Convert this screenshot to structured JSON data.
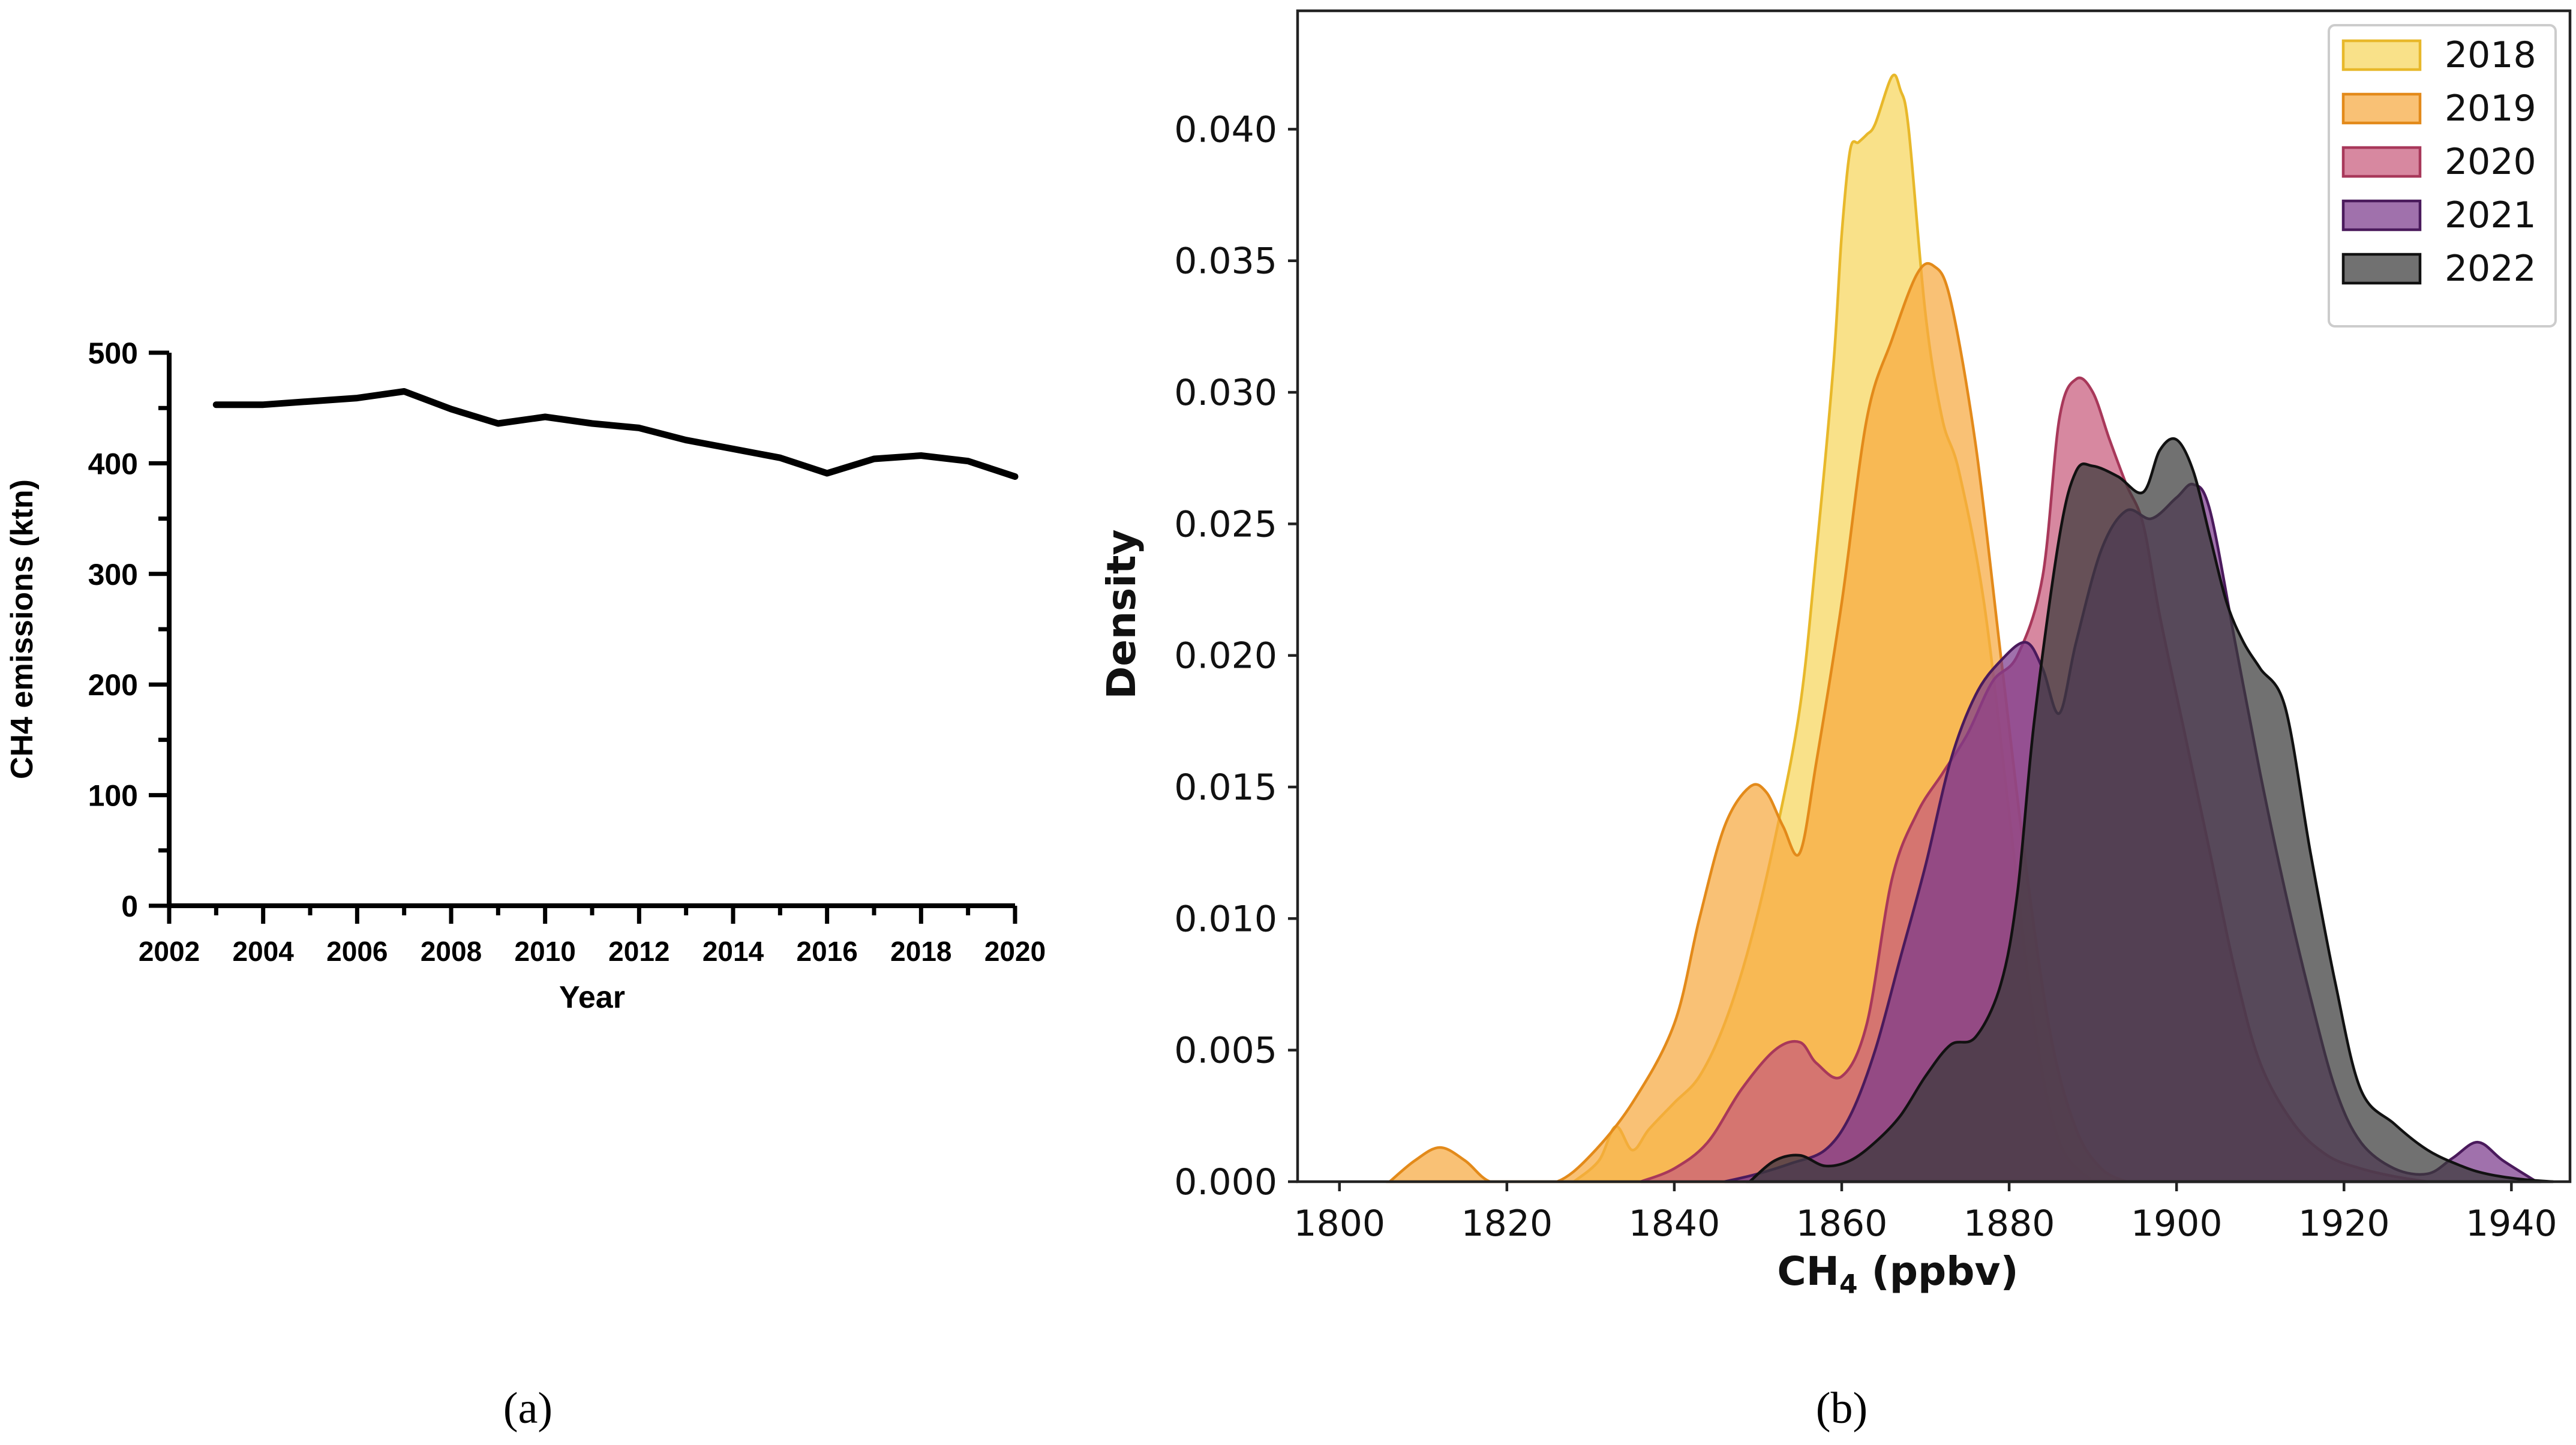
{
  "chart_data": [
    {
      "panel": "a",
      "type": "line",
      "ylabel": "CH4 emissions (ktn)",
      "xlabel": "Year",
      "xlim": [
        2002,
        2020
      ],
      "ylim": [
        0,
        500
      ],
      "x_ticks": [
        "2002",
        "2004",
        "2006",
        "2008",
        "2010",
        "2012",
        "2014",
        "2016",
        "2018",
        "2020"
      ],
      "y_ticks": [
        "0",
        "100",
        "200",
        "300",
        "400",
        "500"
      ],
      "series": [
        {
          "name": "CH4 emissions",
          "x": [
            2003,
            2004,
            2005,
            2006,
            2007,
            2008,
            2009,
            2010,
            2011,
            2012,
            2013,
            2014,
            2015,
            2016,
            2017,
            2018,
            2019,
            2020
          ],
          "values": [
            453,
            453,
            456,
            459,
            465,
            449,
            436,
            442,
            436,
            432,
            421,
            413,
            405,
            391,
            404,
            407,
            402,
            388
          ],
          "color": "#000000"
        }
      ]
    },
    {
      "panel": "b",
      "type": "area",
      "xlabel": "CH",
      "xlabel_sub": "4",
      "xlabel_unit": " (ppbv)",
      "ylabel": "Density",
      "xlim": [
        1795,
        1947
      ],
      "ylim": [
        0,
        0.0445
      ],
      "x_ticks": [
        "1800",
        "1820",
        "1840",
        "1860",
        "1880",
        "1900",
        "1920",
        "1940"
      ],
      "y_ticks": [
        "0.000",
        "0.005",
        "0.010",
        "0.015",
        "0.020",
        "0.025",
        "0.030",
        "0.035",
        "0.040"
      ],
      "legend_position": "top-right",
      "series": [
        {
          "name": "2018",
          "color": "#f6d55c",
          "edge": "#e8b82a",
          "x": [
            1828,
            1831,
            1833,
            1835,
            1837,
            1840,
            1843,
            1846,
            1849,
            1852,
            1855,
            1857,
            1859,
            1860,
            1861,
            1862,
            1863,
            1864,
            1866,
            1867,
            1868,
            1870,
            1872,
            1874,
            1877,
            1880,
            1883,
            1886,
            1890
          ],
          "values": [
            0,
            0.0008,
            0.0021,
            0.0012,
            0.002,
            0.003,
            0.004,
            0.006,
            0.009,
            0.013,
            0.018,
            0.024,
            0.031,
            0.036,
            0.0392,
            0.0395,
            0.0398,
            0.0402,
            0.042,
            0.0415,
            0.04,
            0.033,
            0.029,
            0.027,
            0.022,
            0.014,
            0.006,
            0.0015,
            0
          ]
        },
        {
          "name": "2019",
          "color": "#f7a940",
          "edge": "#e38a1a",
          "x": [
            1806,
            1809,
            1812,
            1815,
            1818,
            1822,
            1826,
            1830,
            1835,
            1840,
            1843,
            1846,
            1849,
            1851,
            1853,
            1855,
            1857,
            1860,
            1863,
            1866,
            1869,
            1871,
            1873,
            1876,
            1879,
            1882,
            1885,
            1888,
            1891,
            1894
          ],
          "values": [
            0,
            0.0008,
            0.0013,
            0.0008,
            0,
            0,
            0,
            0.001,
            0.003,
            0.006,
            0.01,
            0.0135,
            0.015,
            0.0148,
            0.0135,
            0.0125,
            0.016,
            0.022,
            0.029,
            0.032,
            0.0345,
            0.0348,
            0.0335,
            0.028,
            0.02,
            0.012,
            0.0055,
            0.002,
            0.0005,
            0
          ]
        },
        {
          "name": "2020",
          "color": "#c85a7c",
          "edge": "#a8385a",
          "x": [
            1836,
            1840,
            1844,
            1848,
            1852,
            1855,
            1857,
            1860,
            1863,
            1866,
            1869,
            1872,
            1875,
            1878,
            1881,
            1884,
            1886,
            1888,
            1890,
            1892,
            1894,
            1896,
            1898,
            1901,
            1904,
            1907,
            1910,
            1914,
            1918,
            1922,
            1926,
            1930
          ],
          "values": [
            0,
            0.0005,
            0.0015,
            0.0035,
            0.005,
            0.0053,
            0.0045,
            0.004,
            0.006,
            0.0115,
            0.014,
            0.0155,
            0.017,
            0.019,
            0.02,
            0.023,
            0.029,
            0.0305,
            0.03,
            0.0282,
            0.0265,
            0.025,
            0.0215,
            0.017,
            0.0125,
            0.008,
            0.0045,
            0.0022,
            0.001,
            0.0005,
            0.0002,
            0
          ]
        },
        {
          "name": "2021",
          "color": "#7b3a8c",
          "edge": "#4a1a5c",
          "x": [
            1846,
            1850,
            1854,
            1858,
            1861,
            1864,
            1867,
            1870,
            1873,
            1876,
            1879,
            1882,
            1884,
            1886,
            1888,
            1891,
            1894,
            1897,
            1900,
            1902,
            1904,
            1907,
            1910,
            1913,
            1916,
            1919,
            1922,
            1926,
            1930,
            1933,
            1936,
            1939,
            1943
          ],
          "values": [
            0,
            0.0003,
            0.0007,
            0.0012,
            0.0025,
            0.005,
            0.0085,
            0.012,
            0.016,
            0.0185,
            0.0198,
            0.0205,
            0.0195,
            0.0178,
            0.0205,
            0.024,
            0.0255,
            0.0252,
            0.026,
            0.0265,
            0.0255,
            0.0205,
            0.0155,
            0.011,
            0.007,
            0.0035,
            0.0015,
            0.0005,
            0.0003,
            0.0009,
            0.0015,
            0.0008,
            0
          ]
        },
        {
          "name": "2022",
          "color": "#3a3a3a",
          "edge": "#111111",
          "x": [
            1849,
            1852,
            1855,
            1858,
            1861,
            1864,
            1867,
            1870,
            1873,
            1876,
            1879,
            1881,
            1883,
            1886,
            1888,
            1890,
            1893,
            1896,
            1898,
            1900,
            1902,
            1904,
            1906,
            1908,
            1910,
            1913,
            1916,
            1919,
            1922,
            1926,
            1930,
            1934,
            1937,
            1941,
            1945
          ],
          "values": [
            0,
            0.0008,
            0.001,
            0.0006,
            0.0008,
            0.0015,
            0.0025,
            0.004,
            0.0052,
            0.0055,
            0.0075,
            0.011,
            0.0175,
            0.0245,
            0.027,
            0.0272,
            0.0268,
            0.0262,
            0.0278,
            0.0282,
            0.027,
            0.0245,
            0.022,
            0.0205,
            0.0195,
            0.018,
            0.0125,
            0.0075,
            0.0035,
            0.0022,
            0.0012,
            0.0006,
            0.0003,
            0.0001,
            0
          ]
        }
      ]
    }
  ],
  "captions": {
    "a": "(a)",
    "b": "(b)"
  }
}
